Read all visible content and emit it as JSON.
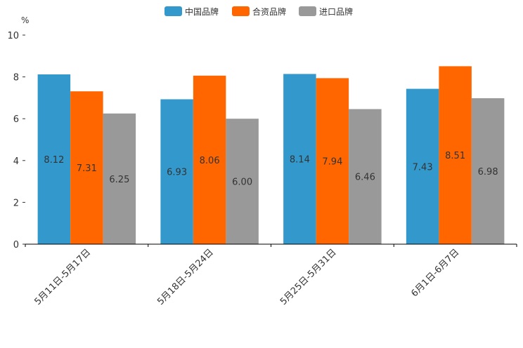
{
  "chart_data": {
    "type": "bar",
    "unit_label": "%",
    "categories": [
      "5月11日-5月17日",
      "5月18日-5月24日",
      "5月25日-5月31日",
      "6月1日-6月7日"
    ],
    "series": [
      {
        "name": "中国品牌",
        "color": "#3399cc",
        "values": [
          8.12,
          6.93,
          8.14,
          7.43
        ],
        "value_labels": [
          "8.12",
          "6.93",
          "8.14",
          "7.43"
        ]
      },
      {
        "name": "合资品牌",
        "color": "#ff6600",
        "values": [
          7.31,
          8.06,
          7.94,
          8.51
        ],
        "value_labels": [
          "7.31",
          "8.06",
          "7.94",
          "8.51"
        ]
      },
      {
        "name": "进口品牌",
        "color": "#999999",
        "values": [
          6.25,
          6.0,
          6.46,
          6.98
        ],
        "value_labels": [
          "6.25",
          "6.00",
          "6.46",
          "6.98"
        ]
      }
    ],
    "ylim": [
      0,
      10
    ],
    "yticks": [
      0,
      2,
      4,
      6,
      8,
      10
    ],
    "ytick_labels": [
      "0",
      "2",
      "4",
      "6",
      "8",
      "10"
    ],
    "legend_position": "top-center",
    "grid": false
  }
}
